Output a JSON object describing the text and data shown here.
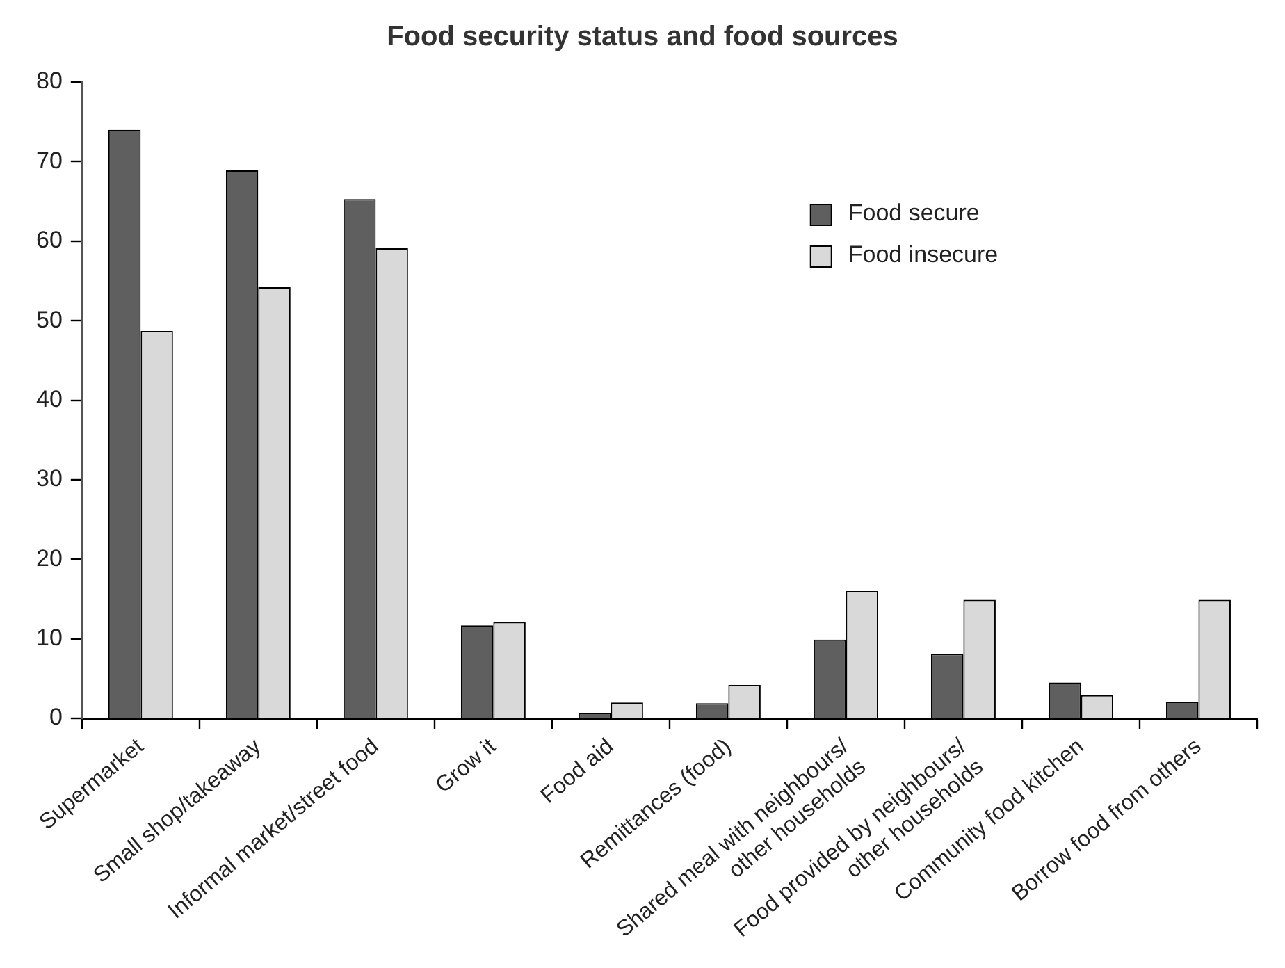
{
  "chart_data": {
    "type": "bar",
    "title": "Food security status and food sources",
    "categories": [
      "Supermarket",
      "Small shop/takeaway",
      "Informal market/street food",
      "Grow it",
      "Food aid",
      "Remittances (food)",
      "Shared meal with neighbours/\nother households",
      "Food provided by neighbours/\nother households",
      "Community food kitchen",
      "Borrow food from others"
    ],
    "series": [
      {
        "name": "Food secure",
        "color": "#5f5f5f",
        "values": [
          74,
          68.9,
          65.3,
          11.7,
          0.7,
          1.9,
          9.9,
          8.1,
          4.5,
          2.1
        ]
      },
      {
        "name": "Food insecure",
        "color": "#d9d9d9",
        "values": [
          48.7,
          54.2,
          59.1,
          12.1,
          2,
          4.2,
          16,
          14.9,
          2.9,
          14.9
        ]
      }
    ],
    "ylim": [
      0,
      80
    ],
    "yticks": [
      0,
      10,
      20,
      30,
      40,
      50,
      60,
      70,
      80
    ],
    "grid": false,
    "legend": "top right"
  }
}
